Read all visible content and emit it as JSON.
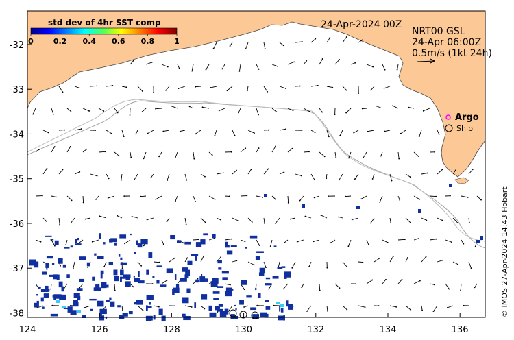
{
  "map": {
    "x_ticks": [
      "124",
      "126",
      "128",
      "130",
      "132",
      "134",
      "136"
    ],
    "y_ticks": [
      "-32",
      "-33",
      "-34",
      "-35",
      "-36",
      "-37",
      "-38"
    ],
    "lon_range": [
      124,
      136.7
    ],
    "lat_range": [
      -38.1,
      -31.25
    ]
  },
  "legend": {
    "title": "std dev of 4hr SST comp",
    "ticks": [
      "0",
      "0.2",
      "0.4",
      "0.6",
      "0.8",
      "1"
    ]
  },
  "date_label": "24-Apr-2024 00Z",
  "product": {
    "line1": "NRT00 GSL",
    "line2": "24-Apr 06:00Z",
    "line3": "0.5m/s (1kt 24h)"
  },
  "markers": {
    "argo_label": "Argo",
    "ship_label": "Ship"
  },
  "credit": "© IMOS 27-Apr-2024 14:43 Hobart",
  "colors": {
    "land": "#fcc896",
    "bathymetry": "#a6a6a6",
    "sst_patch": "#1030a0",
    "argo": "#ff00ff"
  }
}
